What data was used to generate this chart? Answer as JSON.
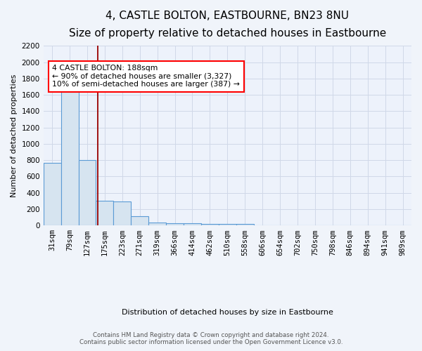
{
  "title": "4, CASTLE BOLTON, EASTBOURNE, BN23 8NU",
  "subtitle": "Size of property relative to detached houses in Eastbourne",
  "xlabel": "Distribution of detached houses by size in Eastbourne",
  "ylabel": "Number of detached properties",
  "categories": [
    "31sqm",
    "79sqm",
    "127sqm",
    "175sqm",
    "223sqm",
    "271sqm",
    "319sqm",
    "366sqm",
    "414sqm",
    "462sqm",
    "510sqm",
    "558sqm",
    "606sqm",
    "654sqm",
    "702sqm",
    "750sqm",
    "798sqm",
    "846sqm",
    "894sqm",
    "941sqm",
    "989sqm"
  ],
  "values": [
    770,
    1680,
    800,
    300,
    295,
    110,
    40,
    30,
    25,
    20,
    20,
    20,
    0,
    0,
    0,
    0,
    0,
    0,
    0,
    0,
    0
  ],
  "bar_color": "#d6e4f0",
  "bar_edge_color": "#5b9bd5",
  "red_line_x": 2.62,
  "annotation_text": "4 CASTLE BOLTON: 188sqm\n← 90% of detached houses are smaller (3,327)\n10% of semi-detached houses are larger (387) →",
  "annotation_box_color": "white",
  "annotation_box_edge": "red",
  "ylim": [
    0,
    2200
  ],
  "yticks": [
    0,
    200,
    400,
    600,
    800,
    1000,
    1200,
    1400,
    1600,
    1800,
    2000,
    2200
  ],
  "plot_bg_color": "#edf2fb",
  "grid_color": "#d0d8e8",
  "footer1": "Contains HM Land Registry data © Crown copyright and database right 2024.",
  "footer2": "Contains public sector information licensed under the Open Government Licence v3.0.",
  "title_fontsize": 11,
  "subtitle_fontsize": 9.5,
  "axis_label_fontsize": 8,
  "tick_fontsize": 7.5
}
